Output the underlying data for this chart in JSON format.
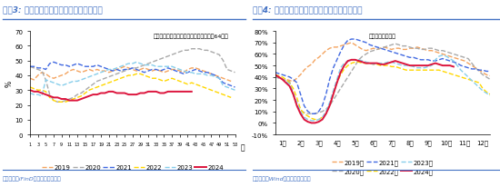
{
  "chart1": {
    "title": "图袅3: 近半月石油历青装置开工率环比续升",
    "subtitle": "开工率：石油历青装置（国内样本企业：64家）",
    "ylabel": "%",
    "xlabel": "周",
    "ylim": [
      0,
      70
    ],
    "yticks": [
      0,
      10,
      20,
      30,
      40,
      50,
      60,
      70
    ],
    "xticks": [
      1,
      3,
      5,
      7,
      9,
      11,
      13,
      15,
      17,
      19,
      21,
      23,
      25,
      27,
      29,
      31,
      33,
      35,
      37,
      39,
      41,
      43,
      45,
      47,
      49,
      51,
      53
    ],
    "source": "资料来源：iFinD；国盛证券研究所",
    "series": {
      "2019": {
        "color": "#F4A460",
        "style": "--",
        "lw": 1.0,
        "data": [
          38,
          37,
          40,
          42,
          41,
          39,
          38,
          39,
          40,
          41,
          43,
          44,
          43,
          42,
          43,
          44,
          43,
          44,
          43,
          43,
          42,
          43,
          44,
          45,
          46,
          45,
          44,
          43,
          44,
          45,
          44,
          43,
          44,
          43,
          42,
          43,
          44,
          44,
          43,
          42,
          44,
          45,
          45,
          44,
          43,
          42,
          41,
          40,
          39,
          38,
          37,
          36,
          null
        ]
      },
      "2020": {
        "color": "#A9A9A9",
        "style": "--",
        "lw": 1.0,
        "data": [
          46,
          45,
          44,
          43,
          37,
          27,
          23,
          22,
          22,
          23,
          24,
          25,
          27,
          28,
          30,
          32,
          34,
          36,
          37,
          38,
          39,
          40,
          41,
          42,
          43,
          44,
          45,
          45,
          46,
          47,
          48,
          49,
          50,
          51,
          52,
          53,
          54,
          55,
          56,
          57,
          57,
          58,
          58,
          58,
          57,
          57,
          56,
          55,
          54,
          50,
          44,
          43,
          42
        ]
      },
      "2021": {
        "color": "#4169E1",
        "style": "--",
        "lw": 1.0,
        "data": [
          46,
          46,
          45,
          45,
          44,
          48,
          49,
          48,
          47,
          47,
          46,
          47,
          48,
          47,
          46,
          46,
          46,
          47,
          46,
          45,
          44,
          43,
          44,
          43,
          44,
          44,
          45,
          44,
          43,
          42,
          43,
          44,
          44,
          43,
          44,
          45,
          44,
          43,
          42,
          41,
          42,
          43,
          44,
          43,
          42,
          42,
          41,
          40,
          38,
          35,
          34,
          33,
          32
        ]
      },
      "2022": {
        "color": "#FFD700",
        "style": "--",
        "lw": 1.0,
        "data": [
          32,
          31,
          30,
          30,
          29,
          25,
          23,
          22,
          22,
          22,
          23,
          24,
          25,
          26,
          28,
          30,
          31,
          32,
          33,
          34,
          35,
          36,
          37,
          38,
          39,
          40,
          40,
          41,
          41,
          40,
          39,
          38,
          38,
          37,
          36,
          37,
          38,
          37,
          36,
          35,
          34,
          35,
          34,
          33,
          32,
          31,
          30,
          29,
          28,
          27,
          26,
          25,
          null
        ]
      },
      "2023": {
        "color": "#87CEEB",
        "style": "--",
        "lw": 1.0,
        "data": [
          28,
          27,
          27,
          26,
          37,
          36,
          35,
          34,
          33,
          34,
          35,
          36,
          36,
          37,
          38,
          39,
          40,
          41,
          42,
          43,
          44,
          44,
          45,
          46,
          47,
          48,
          48,
          49,
          48,
          47,
          47,
          47,
          46,
          46,
          46,
          46,
          46,
          45,
          44,
          43,
          42,
          42,
          41,
          41,
          41,
          40,
          40,
          39,
          38,
          33,
          32,
          31,
          30
        ]
      },
      "2024": {
        "color": "#DC143C",
        "style": "-",
        "lw": 1.4,
        "data": [
          30,
          29,
          29,
          28,
          27,
          26,
          25,
          25,
          24,
          24,
          23,
          23,
          23,
          24,
          25,
          26,
          27,
          27,
          28,
          28,
          29,
          29,
          28,
          28,
          28,
          27,
          27,
          27,
          28,
          28,
          29,
          29,
          29,
          28,
          28,
          29,
          29,
          29,
          29,
          29,
          29,
          29,
          null,
          null,
          null,
          null,
          null,
          null,
          null,
          null,
          null,
          null,
          null
        ]
      }
    }
  },
  "chart2": {
    "title": "图袅4: 近半月水泥粉磨开工率均值环比有所回落",
    "subtitle": "水泥：粉磨开工率",
    "ylabel": "",
    "xlabel": "",
    "ylim": [
      -10,
      80
    ],
    "yticks": [
      -10,
      0,
      10,
      20,
      30,
      40,
      50,
      60,
      70,
      80
    ],
    "yticklabels": [
      "-10%",
      "0%",
      "10%",
      "20%",
      "30%",
      "40%",
      "50%",
      "60%",
      "70%",
      "80%"
    ],
    "source": "资料来源：Wind；国盛证券研究所",
    "months": [
      "1月",
      "2月",
      "3月",
      "4月",
      "5月",
      "6月",
      "7月",
      "8月",
      "9月",
      "10月",
      "11月",
      "12月"
    ],
    "series": {
      "2019年": {
        "color": "#F4A460",
        "style": "--",
        "lw": 1.0,
        "data": [
          42,
          40,
          38,
          38,
          37,
          36,
          39,
          42,
          46,
          49,
          51,
          55,
          57,
          60,
          63,
          65,
          66,
          66,
          67,
          68,
          69,
          70,
          68,
          66,
          64,
          63,
          64,
          65,
          64,
          65,
          66,
          65,
          64,
          65,
          65,
          64,
          64,
          65,
          65,
          66,
          65,
          64,
          63,
          63,
          62,
          61,
          60,
          59,
          58,
          57,
          56,
          55,
          54,
          52,
          50,
          48,
          46,
          44,
          42,
          41
        ]
      },
      "2020年": {
        "color": "#A9A9A9",
        "style": "--",
        "lw": 1.0,
        "data": [
          40,
          39,
          38,
          37,
          36,
          25,
          15,
          11,
          9,
          8,
          8,
          8,
          9,
          10,
          12,
          15,
          20,
          25,
          30,
          35,
          40,
          45,
          50,
          55,
          58,
          60,
          62,
          63,
          64,
          65,
          66,
          67,
          68,
          69,
          68,
          67,
          67,
          66,
          65,
          65,
          64,
          64,
          65,
          65,
          64,
          63,
          63,
          62,
          61,
          60,
          59,
          58,
          57,
          56,
          52,
          48,
          45,
          42,
          40,
          38
        ]
      },
      "2021年": {
        "color": "#4169E1",
        "style": "--",
        "lw": 1.0,
        "data": [
          44,
          43,
          42,
          41,
          40,
          38,
          35,
          25,
          15,
          10,
          8,
          8,
          10,
          15,
          25,
          38,
          48,
          55,
          62,
          68,
          72,
          73,
          73,
          72,
          71,
          70,
          68,
          67,
          66,
          65,
          64,
          63,
          62,
          61,
          60,
          59,
          58,
          57,
          57,
          56,
          55,
          55,
          55,
          54,
          54,
          55,
          56,
          55,
          54,
          53,
          52,
          50,
          49,
          48,
          47,
          47,
          46,
          46,
          45,
          45
        ]
      },
      "2022年": {
        "color": "#FFD700",
        "style": "--",
        "lw": 1.0,
        "data": [
          42,
          41,
          40,
          38,
          35,
          30,
          22,
          12,
          8,
          6,
          4,
          3,
          3,
          5,
          8,
          15,
          25,
          35,
          42,
          47,
          50,
          52,
          53,
          53,
          52,
          52,
          52,
          51,
          51,
          50,
          50,
          50,
          49,
          49,
          48,
          47,
          46,
          46,
          46,
          46,
          46,
          46,
          46,
          46,
          46,
          46,
          45,
          44,
          43,
          42,
          41,
          40,
          39,
          38,
          37,
          36,
          35,
          30,
          27,
          25
        ]
      },
      "2023年": {
        "color": "#87CEEB",
        "style": "--",
        "lw": 1.0,
        "data": [
          42,
          40,
          38,
          36,
          34,
          26,
          18,
          10,
          5,
          3,
          2,
          2,
          3,
          5,
          10,
          18,
          28,
          38,
          48,
          52,
          54,
          55,
          55,
          55,
          54,
          53,
          52,
          51,
          52,
          52,
          52,
          53,
          53,
          52,
          51,
          50,
          50,
          50,
          49,
          48,
          48,
          48,
          49,
          50,
          55,
          58,
          59,
          58,
          56,
          54,
          50,
          46,
          43,
          40,
          37,
          34,
          31,
          28,
          26,
          24
        ]
      },
      "2024年": {
        "color": "#DC143C",
        "style": "-",
        "lw": 1.4,
        "data": [
          42,
          40,
          38,
          35,
          32,
          25,
          15,
          8,
          3,
          1,
          0,
          0,
          1,
          3,
          8,
          15,
          25,
          35,
          44,
          50,
          54,
          55,
          55,
          54,
          53,
          52,
          52,
          52,
          52,
          51,
          51,
          52,
          53,
          54,
          53,
          52,
          51,
          50,
          50,
          50,
          50,
          50,
          50,
          51,
          52,
          51,
          50,
          50,
          50,
          49,
          null,
          null,
          null,
          null,
          null,
          null,
          null,
          null,
          null,
          null
        ]
      }
    }
  },
  "title_color": "#4472C4",
  "title_bg": "#DCE6F1",
  "source_color": "#4472C4",
  "bg_color": "#FFFFFF",
  "header_line_color": "#4472C4",
  "title_fontsize": 6.5,
  "label_fontsize": 5.5,
  "legend_fontsize": 5.0,
  "tick_fontsize": 5.0
}
